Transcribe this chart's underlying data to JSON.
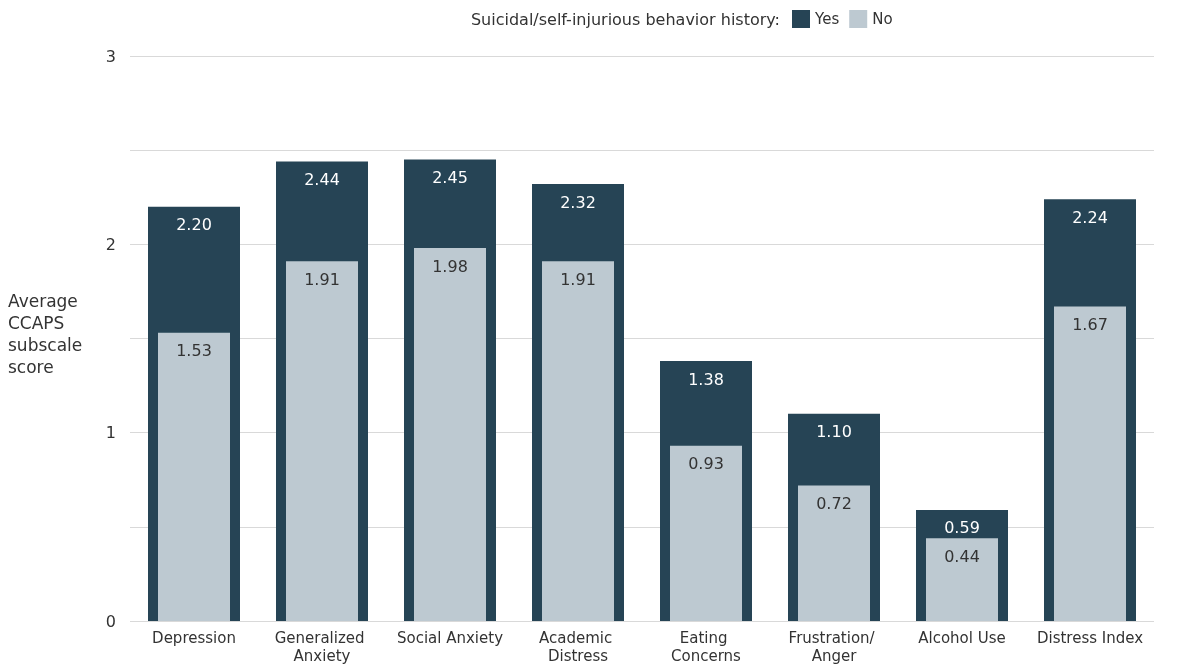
{
  "chart_data": {
    "type": "bar",
    "legend_title": "Suicidal/self-injurious behavior history:",
    "ylabel": "Average CCAPS subscale score",
    "categories": [
      "Depression",
      "Generalized Anxiety",
      "Social Anxiety",
      "Academic Distress",
      "Eating Concerns",
      "Frustration/ Anger",
      "Alcohol Use",
      "Distress Index"
    ],
    "series": [
      {
        "name": "Yes",
        "color": "#264455",
        "values": [
          2.2,
          2.44,
          2.45,
          2.32,
          1.38,
          1.1,
          0.59,
          2.24
        ],
        "value_labels": [
          "2.20",
          "2.44",
          "2.45",
          "2.32",
          "1.38",
          "1.10",
          "0.59",
          "2.24"
        ]
      },
      {
        "name": "No",
        "color": "#bdc9d1",
        "values": [
          1.53,
          1.91,
          1.98,
          1.91,
          0.93,
          0.72,
          0.44,
          1.67
        ],
        "value_labels": [
          "1.53",
          "1.91",
          "1.98",
          "1.91",
          "0.93",
          "0.72",
          "0.44",
          "1.67"
        ]
      }
    ],
    "ylim": [
      0,
      3
    ],
    "yticks": [
      0,
      {
        "value": 0.5,
        "label": null
      },
      1,
      {
        "value": 1.5,
        "label": null
      },
      2,
      {
        "value": 2.5,
        "label": null
      },
      3
    ],
    "grid": "y",
    "legend": "top"
  }
}
